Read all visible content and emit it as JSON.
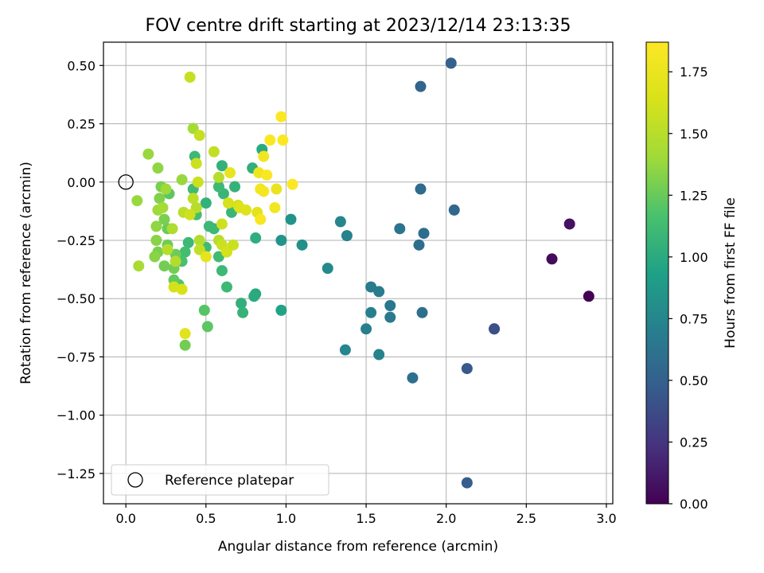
{
  "chart_data": {
    "type": "scatter",
    "title": "FOV centre drift starting at 2023/12/14 23:13:35",
    "xlabel": "Angular distance from reference (arcmin)",
    "ylabel": "Rotation from reference (arcmin)",
    "xlim": [
      -0.14,
      3.04
    ],
    "ylim": [
      -1.38,
      0.6
    ],
    "xticks": [
      0.0,
      0.5,
      1.0,
      1.5,
      2.0,
      2.5,
      3.0
    ],
    "xtick_labels": [
      "0.0",
      "0.5",
      "1.0",
      "1.5",
      "2.0",
      "2.5",
      "3.0"
    ],
    "yticks": [
      0.5,
      0.25,
      0.0,
      -0.25,
      -0.5,
      -0.75,
      -1.0,
      -1.25
    ],
    "ytick_labels": [
      "0.50",
      "0.25",
      "0.00",
      "−0.25",
      "−0.50",
      "−0.75",
      "−1.00",
      "−1.25"
    ],
    "grid": true,
    "colormap": "viridis",
    "colorbar": {
      "label": "Hours from first FF file",
      "range": [
        0.0,
        1.87
      ],
      "ticks": [
        0.0,
        0.25,
        0.5,
        0.75,
        1.0,
        1.25,
        1.5,
        1.75
      ],
      "tick_labels": [
        "0.00",
        "0.25",
        "0.50",
        "0.75",
        "1.00",
        "1.25",
        "1.50",
        "1.75"
      ]
    },
    "legend": {
      "placement": "lower-left",
      "entries": [
        {
          "label": "Reference platepar",
          "marker": "open-circle"
        }
      ]
    },
    "reference_point": {
      "x": 0.0,
      "y": 0.0
    },
    "points": [
      [
        2.89,
        -0.49,
        0.0
      ],
      [
        2.66,
        -0.33,
        0.05
      ],
      [
        2.77,
        -0.18,
        0.08
      ],
      [
        2.3,
        -0.63,
        0.35
      ],
      [
        2.3,
        -0.63,
        0.4
      ],
      [
        2.13,
        -0.8,
        0.45
      ],
      [
        2.13,
        -1.29,
        0.48
      ],
      [
        2.03,
        0.51,
        0.5
      ],
      [
        1.84,
        0.41,
        0.52
      ],
      [
        2.05,
        -0.12,
        0.55
      ],
      [
        1.84,
        -0.03,
        0.56
      ],
      [
        1.86,
        -0.22,
        0.58
      ],
      [
        1.83,
        -0.27,
        0.58
      ],
      [
        1.85,
        -0.56,
        0.6
      ],
      [
        1.79,
        -0.84,
        0.6
      ],
      [
        1.71,
        -0.2,
        0.62
      ],
      [
        1.65,
        -0.53,
        0.65
      ],
      [
        1.65,
        -0.58,
        0.66
      ],
      [
        1.58,
        -0.47,
        0.68
      ],
      [
        1.53,
        -0.45,
        0.68
      ],
      [
        1.53,
        -0.56,
        0.7
      ],
      [
        1.5,
        -0.63,
        0.7
      ],
      [
        1.58,
        -0.74,
        0.72
      ],
      [
        1.38,
        -0.23,
        0.72
      ],
      [
        1.34,
        -0.17,
        0.74
      ],
      [
        1.37,
        -0.72,
        0.75
      ],
      [
        1.26,
        -0.37,
        0.78
      ],
      [
        1.1,
        -0.27,
        0.82
      ],
      [
        1.03,
        -0.16,
        0.84
      ],
      [
        0.97,
        -0.25,
        0.85
      ],
      [
        0.97,
        -0.55,
        0.95
      ],
      [
        0.81,
        -0.48,
        0.98
      ],
      [
        0.8,
        -0.49,
        1.0
      ],
      [
        0.81,
        -0.24,
        1.02
      ],
      [
        0.85,
        0.14,
        1.0
      ],
      [
        0.79,
        0.06,
        1.04
      ],
      [
        0.72,
        -0.52,
        1.04
      ],
      [
        0.73,
        -0.56,
        1.06
      ],
      [
        0.68,
        -0.02,
        1.06
      ],
      [
        0.66,
        -0.13,
        1.08
      ],
      [
        0.63,
        -0.45,
        1.1
      ],
      [
        0.6,
        -0.38,
        1.1
      ],
      [
        0.6,
        0.07,
        1.05
      ],
      [
        0.61,
        -0.05,
        1.08
      ],
      [
        0.58,
        -0.02,
        1.1
      ],
      [
        0.55,
        -0.2,
        1.1
      ],
      [
        0.58,
        -0.32,
        1.12
      ],
      [
        0.5,
        -0.09,
        1.05
      ],
      [
        0.52,
        -0.19,
        1.1
      ],
      [
        0.5,
        -0.28,
        1.12
      ],
      [
        0.43,
        0.11,
        1.1
      ],
      [
        0.42,
        -0.03,
        1.12
      ],
      [
        0.44,
        -0.14,
        1.14
      ],
      [
        0.39,
        -0.26,
        1.1
      ],
      [
        0.37,
        -0.3,
        1.14
      ],
      [
        0.35,
        -0.34,
        1.16
      ],
      [
        0.33,
        -0.44,
        1.18
      ],
      [
        0.49,
        -0.55,
        1.2
      ],
      [
        0.51,
        -0.62,
        1.22
      ],
      [
        0.37,
        -0.7,
        1.28
      ],
      [
        0.3,
        -0.42,
        1.24
      ],
      [
        0.31,
        -0.31,
        1.26
      ],
      [
        0.3,
        -0.37,
        1.28
      ],
      [
        0.27,
        -0.05,
        1.22
      ],
      [
        0.26,
        -0.2,
        1.25
      ],
      [
        0.26,
        -0.27,
        1.27
      ],
      [
        0.24,
        -0.16,
        1.3
      ],
      [
        0.24,
        -0.36,
        1.28
      ],
      [
        0.22,
        -0.02,
        1.3
      ],
      [
        0.21,
        -0.07,
        1.32
      ],
      [
        0.2,
        -0.3,
        1.3
      ],
      [
        0.19,
        -0.25,
        1.34
      ],
      [
        0.19,
        -0.19,
        1.36
      ],
      [
        0.18,
        -0.32,
        1.34
      ],
      [
        0.2,
        0.06,
        1.36
      ],
      [
        0.14,
        0.12,
        1.38
      ],
      [
        0.07,
        -0.08,
        1.38
      ],
      [
        0.08,
        -0.36,
        1.44
      ],
      [
        0.2,
        -0.12,
        1.4
      ],
      [
        0.23,
        -0.11,
        1.42
      ],
      [
        0.25,
        -0.03,
        1.4
      ],
      [
        0.29,
        -0.2,
        1.46
      ],
      [
        0.26,
        -0.29,
        1.5
      ],
      [
        0.31,
        -0.34,
        1.48
      ],
      [
        0.35,
        0.01,
        1.38
      ],
      [
        0.36,
        -0.13,
        1.52
      ],
      [
        0.4,
        0.45,
        1.56
      ],
      [
        0.42,
        0.23,
        1.42
      ],
      [
        0.46,
        0.2,
        1.56
      ],
      [
        0.44,
        0.08,
        1.58
      ],
      [
        0.45,
        -0.0,
        1.58
      ],
      [
        0.42,
        -0.07,
        1.52
      ],
      [
        0.44,
        -0.11,
        1.5
      ],
      [
        0.4,
        -0.14,
        1.6
      ],
      [
        0.46,
        -0.25,
        1.48
      ],
      [
        0.46,
        -0.29,
        1.55
      ],
      [
        0.5,
        -0.32,
        1.72
      ],
      [
        0.55,
        0.13,
        1.55
      ],
      [
        0.58,
        0.02,
        1.5
      ],
      [
        0.6,
        -0.18,
        1.6
      ],
      [
        0.58,
        -0.25,
        1.5
      ],
      [
        0.6,
        -0.27,
        1.58
      ],
      [
        0.63,
        -0.3,
        1.62
      ],
      [
        0.64,
        -0.09,
        1.62
      ],
      [
        0.67,
        -0.27,
        1.58
      ],
      [
        0.7,
        -0.1,
        1.62
      ],
      [
        0.71,
        -0.11,
        1.66
      ],
      [
        0.75,
        -0.12,
        1.68
      ],
      [
        0.65,
        0.04,
        1.74
      ],
      [
        0.3,
        -0.45,
        1.62
      ],
      [
        0.35,
        -0.46,
        1.64
      ],
      [
        0.37,
        -0.65,
        1.7
      ],
      [
        0.82,
        -0.13,
        1.7
      ],
      [
        0.83,
        0.04,
        1.78
      ],
      [
        0.84,
        -0.03,
        1.8
      ],
      [
        0.86,
        -0.04,
        1.82
      ],
      [
        0.88,
        0.03,
        1.85
      ],
      [
        0.84,
        -0.16,
        1.84
      ],
      [
        0.86,
        0.11,
        1.8
      ],
      [
        0.9,
        0.18,
        1.85
      ],
      [
        0.93,
        -0.11,
        1.8
      ],
      [
        0.94,
        -0.03,
        1.75
      ],
      [
        0.97,
        0.28,
        1.86
      ],
      [
        0.98,
        0.18,
        1.86
      ],
      [
        1.04,
        -0.01,
        1.86
      ]
    ]
  }
}
